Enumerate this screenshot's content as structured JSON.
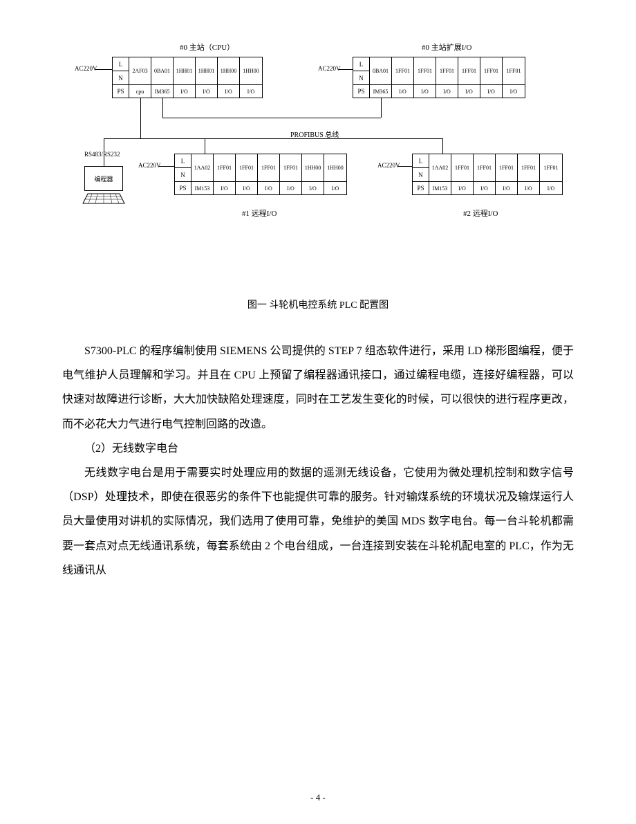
{
  "diagram": {
    "rack0_label": "#0  主站（CPU）",
    "rack0e_label": "#0  主站扩展I/O",
    "rack1_label": "#1  远程I/O",
    "rack2_label": "#2  远程I/O",
    "ac_label": "AC220V",
    "ps_label": "PS",
    "L": "L",
    "N": "N",
    "bus_label": "PROFIBUS  总线",
    "conn_label": "RS483/RS232",
    "programmer": "编程器",
    "rack0": {
      "slots": [
        {
          "top": "2AF03",
          "bottom": "cpu"
        },
        {
          "top": "0BA01",
          "bottom": "IM365"
        },
        {
          "top": "1HH01",
          "bottom": "I/O"
        },
        {
          "top": "1HH01",
          "bottom": "I/O"
        },
        {
          "top": "1HH00",
          "bottom": "I/O"
        },
        {
          "top": "1HH00",
          "bottom": "I/O"
        }
      ]
    },
    "rack0e": {
      "slots": [
        {
          "top": "0BA01",
          "bottom": "IM365"
        },
        {
          "top": "1FF01",
          "bottom": "I/O"
        },
        {
          "top": "1FF01",
          "bottom": "I/O"
        },
        {
          "top": "1FF01",
          "bottom": "I/O"
        },
        {
          "top": "1FF01",
          "bottom": "I/O"
        },
        {
          "top": "1FF01",
          "bottom": "I/O"
        },
        {
          "top": "1FF01",
          "bottom": "I/O"
        }
      ]
    },
    "rack1": {
      "slots": [
        {
          "top": "1AA02",
          "bottom": "IM153"
        },
        {
          "top": "1FF01",
          "bottom": "I/O"
        },
        {
          "top": "1FF01",
          "bottom": "I/O"
        },
        {
          "top": "1FF01",
          "bottom": "I/O"
        },
        {
          "top": "1FF01",
          "bottom": "I/O"
        },
        {
          "top": "1HH00",
          "bottom": "I/O"
        },
        {
          "top": "1HH00",
          "bottom": "I/O"
        }
      ]
    },
    "rack2": {
      "slots": [
        {
          "top": "1AA02",
          "bottom": "IM153"
        },
        {
          "top": "1FF01",
          "bottom": "I/O"
        },
        {
          "top": "1FF01",
          "bottom": "I/O"
        },
        {
          "top": "1FF01",
          "bottom": "I/O"
        },
        {
          "top": "1FF01",
          "bottom": "I/O"
        },
        {
          "top": "1FF01",
          "bottom": "I/O"
        }
      ]
    }
  },
  "caption": "图一  斗轮机电控系统 PLC 配置图",
  "paragraphs": {
    "p1": "S7300-PLC 的程序编制使用 SIEMENS 公司提供的 STEP 7 组态软件进行，采用 LD 梯形图编程，便于电气维护人员理解和学习。并且在 CPU 上预留了编程器通讯接口，通过编程电缆，连接好编程器，可以快速对故障进行诊断，大大加快缺陷处理速度，同时在工艺发生变化的时候，可以很快的进行程序更改，而不必花大力气进行电气控制回路的改造。",
    "p2": "（2）无线数字电台",
    "p3": "无线数字电台是用于需要实时处理应用的数据的遥测无线设备，它使用为微处理机控制和数字信号（DSP）处理技术，即使在很恶劣的条件下也能提供可靠的服务。针对输煤系统的环境状况及输煤运行人员大量使用对讲机的实际情况，我们选用了使用可靠，免维护的美国 MDS 数字电台。每一台斗轮机都需要一套点对点无线通讯系统，每套系统由 2 个电台组成，一台连接到安装在斗轮机配电室的 PLC，作为无线通讯从"
  },
  "page_number": "- 4 -"
}
